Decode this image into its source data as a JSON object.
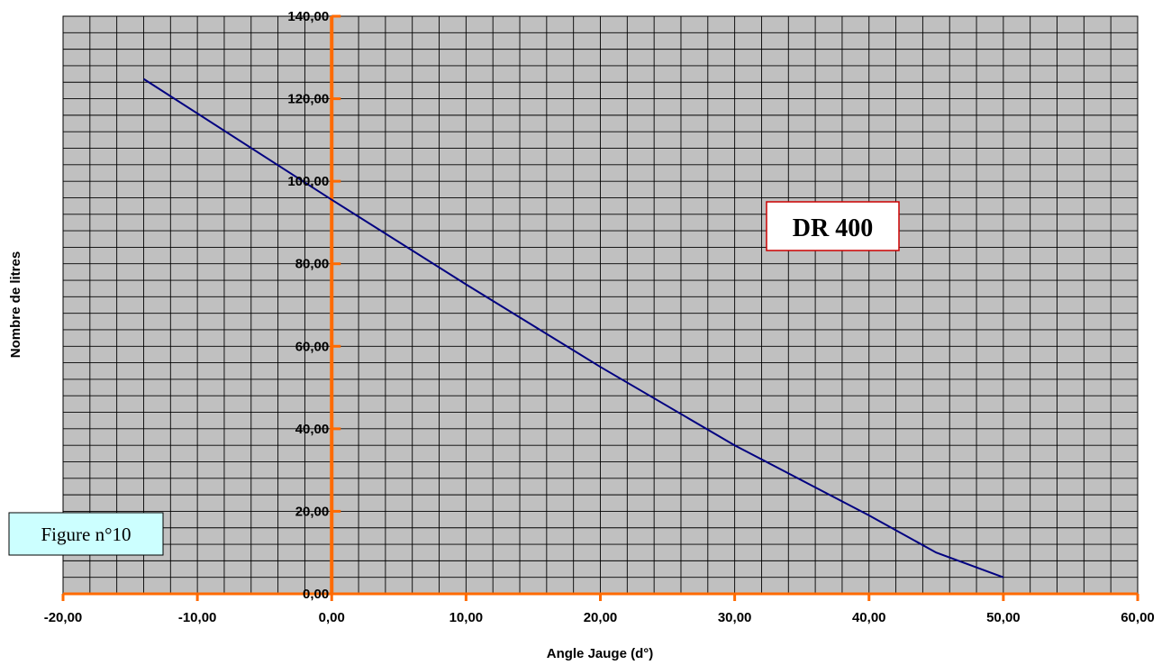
{
  "chart_data": {
    "type": "line",
    "xlabel": "Angle Jauge (d°)",
    "ylabel": "Nombre de litres",
    "xlim": [
      -20,
      60
    ],
    "ylim": [
      0,
      140
    ],
    "x_ticks": [
      "-20,00",
      "-10,00",
      "0,00",
      "10,00",
      "20,00",
      "30,00",
      "40,00",
      "50,00",
      "60,00"
    ],
    "y_ticks": [
      "0,00",
      "20,00",
      "40,00",
      "60,00",
      "80,00",
      "100,00",
      "120,00",
      "140,00"
    ],
    "grid": true,
    "series": [
      {
        "color": "#000080",
        "points": [
          [
            -14,
            124.8
          ],
          [
            0,
            95.5
          ],
          [
            10,
            75
          ],
          [
            20,
            55
          ],
          [
            30,
            36
          ],
          [
            40,
            19
          ],
          [
            45,
            10
          ],
          [
            50,
            4
          ]
        ]
      }
    ],
    "axis_color": "#ff6a00",
    "plot_background": "#c0c0c0",
    "annotations": {
      "model_label": "DR 400",
      "figure_label": "Figure n°10"
    }
  }
}
